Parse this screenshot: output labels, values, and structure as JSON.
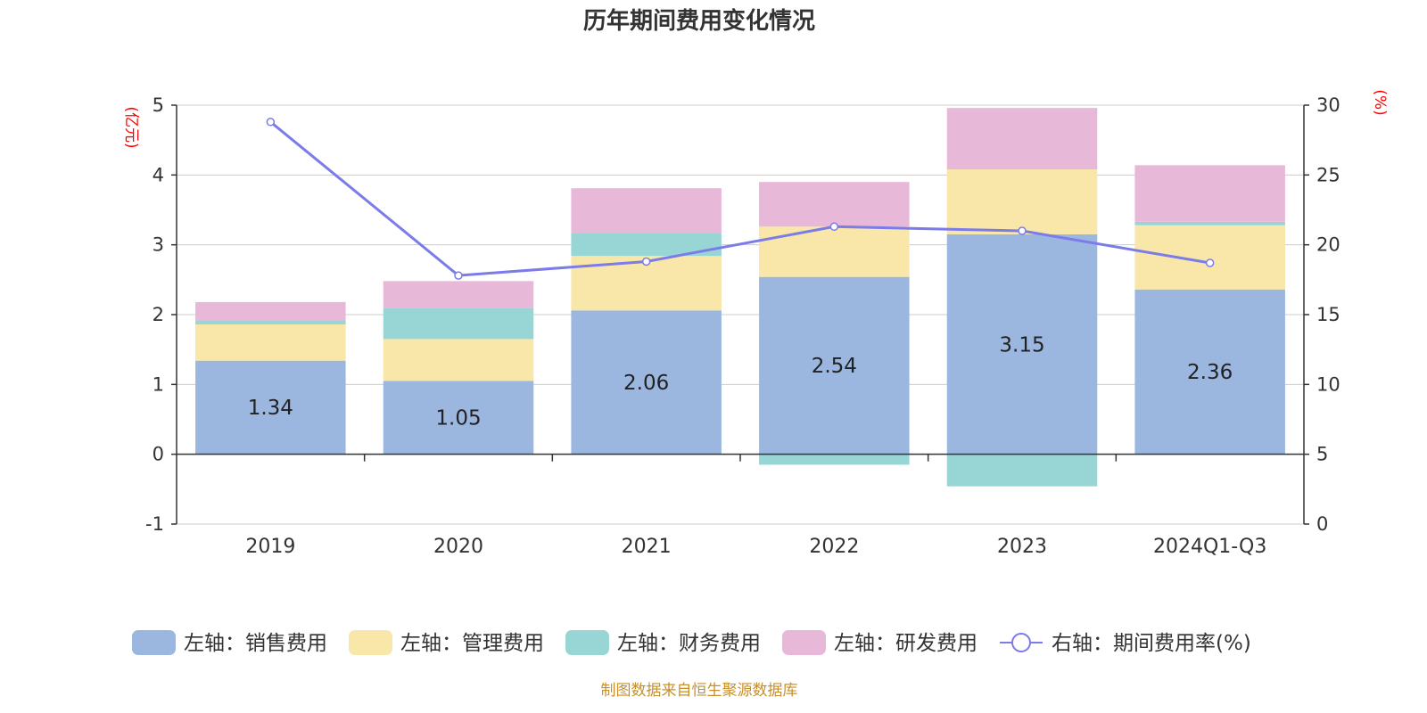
{
  "title": "历年期间费用变化情况",
  "source_note": "制图数据来自恒生聚源数据库",
  "left_axis_unit": "(亿元)",
  "right_axis_unit": "(%)",
  "colors": {
    "sales": "#9bb7e0",
    "admin": "#f8e7a8",
    "finance": "#98d5d5",
    "rd": "#e8b8d9",
    "rate_line": "#7b7bea"
  },
  "chart_data": {
    "type": "bar",
    "stacked": true,
    "categories": [
      "2019",
      "2020",
      "2021",
      "2022",
      "2023",
      "2024Q1-Q3"
    ],
    "series": [
      {
        "name": "左轴：销售费用",
        "axis": "left",
        "values": [
          1.34,
          1.05,
          2.06,
          2.54,
          3.15,
          2.36
        ],
        "labels": [
          "1.34",
          "1.05",
          "2.06",
          "2.54",
          "3.15",
          "2.36"
        ]
      },
      {
        "name": "左轴：管理费用",
        "axis": "left",
        "values": [
          0.52,
          0.6,
          0.78,
          0.72,
          0.93,
          0.92
        ]
      },
      {
        "name": "左轴：财务费用",
        "axis": "left",
        "values": [
          0.05,
          0.44,
          0.33,
          -0.15,
          -0.46,
          0.05
        ]
      },
      {
        "name": "左轴：研发费用",
        "axis": "left",
        "values": [
          0.27,
          0.39,
          0.64,
          0.64,
          0.88,
          0.81
        ]
      },
      {
        "name": "右轴：期间费用率(%)",
        "axis": "right",
        "type": "line",
        "values": [
          28.8,
          17.8,
          18.8,
          21.3,
          21.0,
          18.7
        ]
      }
    ],
    "left_ylim": [
      -1,
      5
    ],
    "left_ticks": [
      "-1",
      "0",
      "1",
      "2",
      "3",
      "4",
      "5"
    ],
    "right_ylim": [
      0,
      30
    ],
    "right_ticks": [
      "0",
      "5",
      "10",
      "15",
      "20",
      "25",
      "30"
    ],
    "grid": true,
    "legend_position": "bottom"
  }
}
